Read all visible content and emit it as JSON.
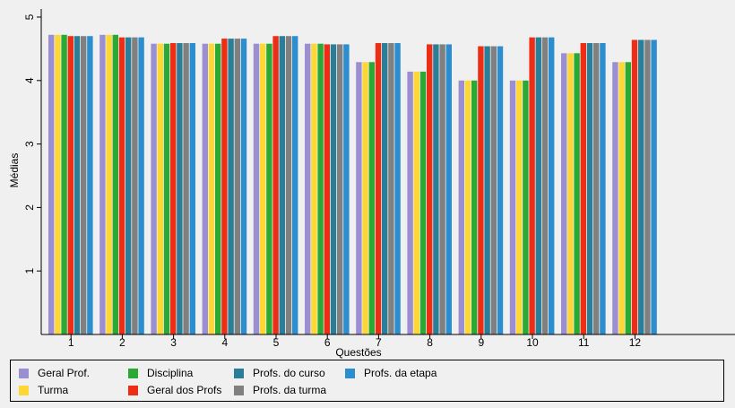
{
  "chart_data": {
    "type": "bar",
    "xlabel": "Questões",
    "ylabel": "Médias",
    "ylim": [
      0,
      5
    ],
    "yticks": [
      1,
      2,
      3,
      4,
      5
    ],
    "categories": [
      "1",
      "2",
      "3",
      "4",
      "5",
      "6",
      "7",
      "8",
      "9",
      "10",
      "11",
      "12"
    ],
    "grid": false,
    "legend_position": "bottom",
    "series": [
      {
        "name": "Geral Prof.",
        "color": "#9b8fd1",
        "values": [
          4.72,
          4.72,
          4.58,
          4.58,
          4.58,
          4.58,
          4.29,
          4.14,
          4.0,
          4.0,
          4.43,
          4.29
        ]
      },
      {
        "name": "Turma",
        "color": "#fdd835",
        "values": [
          4.72,
          4.72,
          4.58,
          4.58,
          4.58,
          4.58,
          4.29,
          4.14,
          4.0,
          4.0,
          4.43,
          4.29
        ]
      },
      {
        "name": "Disciplina",
        "color": "#2aaa35",
        "values": [
          4.72,
          4.72,
          4.58,
          4.58,
          4.58,
          4.58,
          4.29,
          4.14,
          4.0,
          4.0,
          4.43,
          4.29
        ]
      },
      {
        "name": "Geral dos Profs",
        "color": "#ee2e14",
        "values": [
          4.7,
          4.68,
          4.59,
          4.66,
          4.7,
          4.57,
          4.59,
          4.57,
          4.54,
          4.68,
          4.59,
          4.64
        ]
      },
      {
        "name": "Profs. do curso",
        "color": "#2a7e98",
        "values": [
          4.7,
          4.68,
          4.59,
          4.66,
          4.7,
          4.57,
          4.59,
          4.57,
          4.54,
          4.68,
          4.59,
          4.64
        ]
      },
      {
        "name": "Profs. da turma",
        "color": "#808080",
        "values": [
          4.7,
          4.68,
          4.59,
          4.66,
          4.7,
          4.57,
          4.59,
          4.57,
          4.54,
          4.68,
          4.59,
          4.64
        ]
      },
      {
        "name": "Profs. da etapa",
        "color": "#2d8ecf",
        "values": [
          4.7,
          4.68,
          4.59,
          4.66,
          4.7,
          4.57,
          4.59,
          4.57,
          4.54,
          4.68,
          4.59,
          4.64
        ]
      }
    ]
  }
}
